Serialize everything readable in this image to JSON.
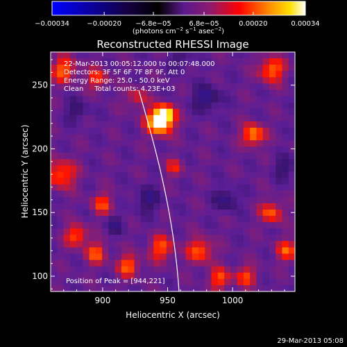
{
  "colorbar": {
    "tick_labels": [
      "−0.00034",
      "−0.00020",
      "−6.8e−05",
      "6.8e−05",
      "0.00020",
      "0.00034"
    ],
    "tick_values": [
      -0.00034,
      -0.0002,
      -6.8e-05,
      6.8e-05,
      0.0002,
      0.00034
    ],
    "range": [
      -0.00034,
      0.00034
    ],
    "units_label": "(photons cm",
    "units_exp1": "−2",
    "units_mid": " s",
    "units_exp2": "−1",
    "units_end": " asec",
    "units_exp3": "−2",
    "units_close": ")",
    "colors": [
      "#0000ff",
      "#000000",
      "#7a1fa0",
      "#ff0000",
      "#ffe000",
      "#ffffff"
    ]
  },
  "plot": {
    "title": "Reconstructed RHESSI Image",
    "xlabel": "Heliocentric X (arcsec)",
    "ylabel": "Heliocentric Y (arcsec)",
    "x_ticks": [
      "900",
      "950",
      "1000"
    ],
    "x_tick_values": [
      900,
      950,
      1000
    ],
    "y_ticks": [
      "100",
      "150",
      "200",
      "250"
    ],
    "y_tick_values": [
      100,
      150,
      200,
      250
    ],
    "xlim": [
      860,
      1048
    ],
    "ylim": [
      88,
      276
    ],
    "info_lines": [
      "22-Mar-2013 00:05:12.000 to 00:07:48.000",
      "Detectors: 3F 5F 6F 7F 8F 9F, Att 0",
      "Energy Range: 25.0 - 50.0 keV",
      "Clean     Total counts: 4.23E+03"
    ],
    "peak_label": "Position of Peak = [944,221]",
    "peak": [
      944,
      221
    ],
    "limb_color": "#ffffff",
    "sources": [
      {
        "x": 944,
        "y": 221,
        "amp": 1.0,
        "sigma": 7
      },
      {
        "x": 948,
        "y": 228,
        "amp": 0.65,
        "sigma": 5
      },
      {
        "x": 1016,
        "y": 211,
        "amp": 0.7,
        "sigma": 6
      },
      {
        "x": 1030,
        "y": 262,
        "amp": 0.6,
        "sigma": 7
      },
      {
        "x": 868,
        "y": 180,
        "amp": 0.55,
        "sigma": 8
      },
      {
        "x": 870,
        "y": 262,
        "amp": 0.55,
        "sigma": 7
      },
      {
        "x": 896,
        "y": 255,
        "amp": 0.45,
        "sigma": 6
      },
      {
        "x": 926,
        "y": 240,
        "amp": 0.35,
        "sigma": 6
      },
      {
        "x": 880,
        "y": 132,
        "amp": 0.55,
        "sigma": 6
      },
      {
        "x": 895,
        "y": 118,
        "amp": 0.5,
        "sigma": 6
      },
      {
        "x": 920,
        "y": 108,
        "amp": 0.55,
        "sigma": 6
      },
      {
        "x": 945,
        "y": 122,
        "amp": 0.5,
        "sigma": 7
      },
      {
        "x": 975,
        "y": 120,
        "amp": 0.55,
        "sigma": 7
      },
      {
        "x": 990,
        "y": 98,
        "amp": 0.5,
        "sigma": 6
      },
      {
        "x": 1030,
        "y": 150,
        "amp": 0.55,
        "sigma": 6
      },
      {
        "x": 1042,
        "y": 120,
        "amp": 0.5,
        "sigma": 6
      },
      {
        "x": 1010,
        "y": 100,
        "amp": 0.45,
        "sigma": 6
      },
      {
        "x": 900,
        "y": 157,
        "amp": 0.45,
        "sigma": 6
      },
      {
        "x": 955,
        "y": 185,
        "amp": 0.35,
        "sigma": 5
      },
      {
        "x": 980,
        "y": 240,
        "amp": -0.45,
        "sigma": 7
      },
      {
        "x": 995,
        "y": 160,
        "amp": -0.4,
        "sigma": 6
      },
      {
        "x": 935,
        "y": 160,
        "amp": -0.35,
        "sigma": 7
      },
      {
        "x": 880,
        "y": 230,
        "amp": -0.3,
        "sigma": 6
      },
      {
        "x": 1040,
        "y": 185,
        "amp": -0.3,
        "sigma": 6
      },
      {
        "x": 910,
        "y": 140,
        "amp": -0.3,
        "sigma": 5
      },
      {
        "x": 960,
        "y": 270,
        "amp": -0.25,
        "sigma": 6
      }
    ]
  },
  "footer": {
    "timestamp": "29-Mar-2013 05:08"
  }
}
